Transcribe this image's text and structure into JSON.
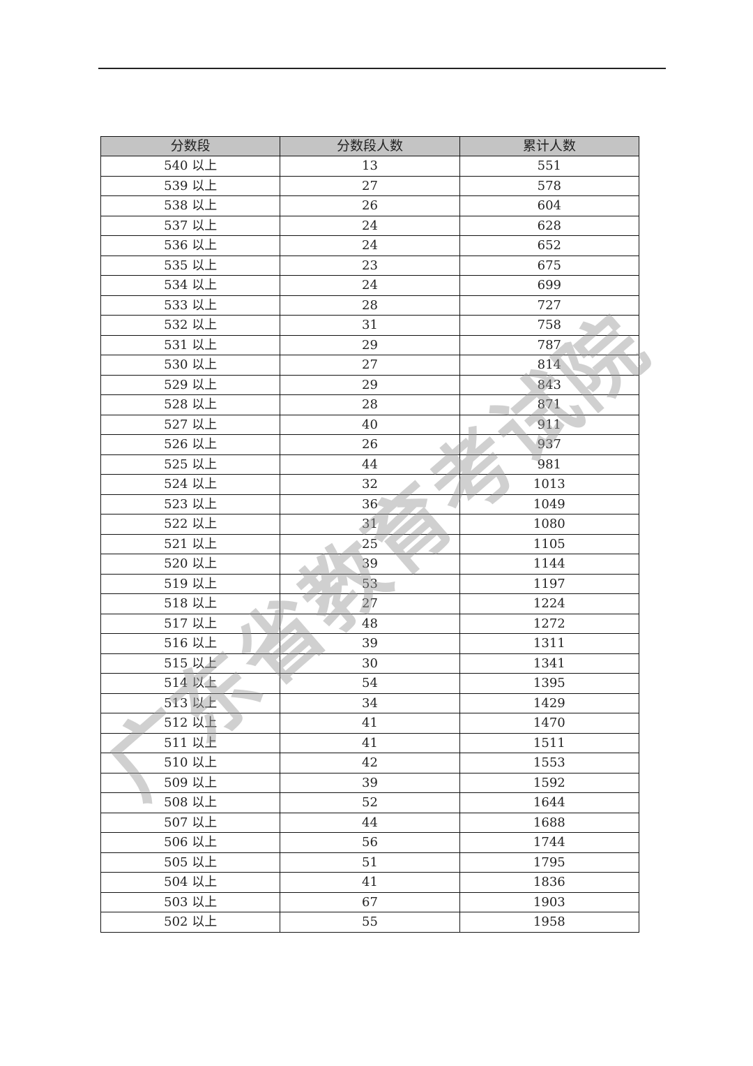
{
  "watermark": "广东省教育考试院",
  "table": {
    "headers": [
      "分数段",
      "分数段人数",
      "累计人数"
    ],
    "suffix": "以上",
    "rows": [
      [
        "540 以上",
        "13",
        "551"
      ],
      [
        "539 以上",
        "27",
        "578"
      ],
      [
        "538 以上",
        "26",
        "604"
      ],
      [
        "537 以上",
        "24",
        "628"
      ],
      [
        "536 以上",
        "24",
        "652"
      ],
      [
        "535 以上",
        "23",
        "675"
      ],
      [
        "534 以上",
        "24",
        "699"
      ],
      [
        "533 以上",
        "28",
        "727"
      ],
      [
        "532 以上",
        "31",
        "758"
      ],
      [
        "531 以上",
        "29",
        "787"
      ],
      [
        "530 以上",
        "27",
        "814"
      ],
      [
        "529 以上",
        "29",
        "843"
      ],
      [
        "528 以上",
        "28",
        "871"
      ],
      [
        "527 以上",
        "40",
        "911"
      ],
      [
        "526 以上",
        "26",
        "937"
      ],
      [
        "525 以上",
        "44",
        "981"
      ],
      [
        "524 以上",
        "32",
        "1013"
      ],
      [
        "523 以上",
        "36",
        "1049"
      ],
      [
        "522 以上",
        "31",
        "1080"
      ],
      [
        "521 以上",
        "25",
        "1105"
      ],
      [
        "520 以上",
        "39",
        "1144"
      ],
      [
        "519 以上",
        "53",
        "1197"
      ],
      [
        "518 以上",
        "27",
        "1224"
      ],
      [
        "517 以上",
        "48",
        "1272"
      ],
      [
        "516 以上",
        "39",
        "1311"
      ],
      [
        "515 以上",
        "30",
        "1341"
      ],
      [
        "514 以上",
        "54",
        "1395"
      ],
      [
        "513 以上",
        "34",
        "1429"
      ],
      [
        "512 以上",
        "41",
        "1470"
      ],
      [
        "511 以上",
        "41",
        "1511"
      ],
      [
        "510 以上",
        "42",
        "1553"
      ],
      [
        "509 以上",
        "39",
        "1592"
      ],
      [
        "508 以上",
        "52",
        "1644"
      ],
      [
        "507 以上",
        "44",
        "1688"
      ],
      [
        "506 以上",
        "56",
        "1744"
      ],
      [
        "505 以上",
        "51",
        "1795"
      ],
      [
        "504 以上",
        "41",
        "1836"
      ],
      [
        "503 以上",
        "67",
        "1903"
      ],
      [
        "502 以上",
        "55",
        "1958"
      ]
    ]
  }
}
